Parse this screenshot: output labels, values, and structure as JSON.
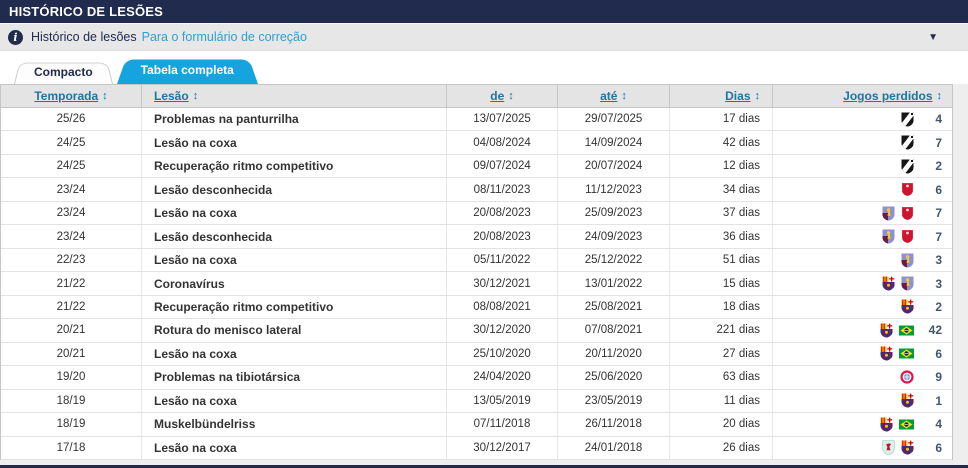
{
  "header": {
    "title": "HISTÓRICO DE LESÕES"
  },
  "info_bar": {
    "label": "Histórico de lesões",
    "link": "Para o formulário de correção",
    "caret": "▼"
  },
  "tabs": [
    {
      "label": "Compacto",
      "active": false
    },
    {
      "label": "Tabela completa",
      "active": true
    }
  ],
  "table": {
    "sort_glyph": "↕",
    "columns": [
      {
        "key": "temporada",
        "label": "Temporada"
      },
      {
        "key": "lesao",
        "label": "Lesão"
      },
      {
        "key": "de",
        "label": "de"
      },
      {
        "key": "ate",
        "label": "até"
      },
      {
        "key": "dias",
        "label": "Dias"
      },
      {
        "key": "jogos",
        "label": "Jogos perdidos"
      }
    ],
    "rows": [
      {
        "temporada": "25/26",
        "lesao": "Problemas na panturrilha",
        "de": "13/07/2025",
        "ate": "29/07/2025",
        "dias": "17 dias",
        "clubs": [
          "vasco-da-gama"
        ],
        "jogos": "4"
      },
      {
        "temporada": "24/25",
        "lesao": "Lesão na coxa",
        "de": "04/08/2024",
        "ate": "14/09/2024",
        "dias": "42 dias",
        "clubs": [
          "vasco-da-gama"
        ],
        "jogos": "7"
      },
      {
        "temporada": "24/25",
        "lesao": "Recuperação ritmo competitivo",
        "de": "09/07/2024",
        "ate": "20/07/2024",
        "dias": "12 dias",
        "clubs": [
          "vasco-da-gama"
        ],
        "jogos": "2"
      },
      {
        "temporada": "23/24",
        "lesao": "Lesão desconhecida",
        "de": "08/11/2023",
        "ate": "11/12/2023",
        "dias": "34 dias",
        "clubs": [
          "al-duhail"
        ],
        "jogos": "6"
      },
      {
        "temporada": "23/24",
        "lesao": "Lesão na coxa",
        "de": "20/08/2023",
        "ate": "25/09/2023",
        "dias": "37 dias",
        "clubs": [
          "aston-villa",
          "al-duhail"
        ],
        "jogos": "7"
      },
      {
        "temporada": "23/24",
        "lesao": "Lesão desconhecida",
        "de": "20/08/2023",
        "ate": "24/09/2023",
        "dias": "36 dias",
        "clubs": [
          "aston-villa",
          "al-duhail"
        ],
        "jogos": "7"
      },
      {
        "temporada": "22/23",
        "lesao": "Lesão na coxa",
        "de": "05/11/2022",
        "ate": "25/12/2022",
        "dias": "51 dias",
        "clubs": [
          "aston-villa"
        ],
        "jogos": "3"
      },
      {
        "temporada": "21/22",
        "lesao": "Coronavírus",
        "de": "30/12/2021",
        "ate": "13/01/2022",
        "dias": "15 dias",
        "clubs": [
          "barcelona",
          "aston-villa"
        ],
        "jogos": "3"
      },
      {
        "temporada": "21/22",
        "lesao": "Recuperação ritmo competitivo",
        "de": "08/08/2021",
        "ate": "25/08/2021",
        "dias": "18 dias",
        "clubs": [
          "barcelona"
        ],
        "jogos": "2"
      },
      {
        "temporada": "20/21",
        "lesao": "Rotura do menisco lateral",
        "de": "30/12/2020",
        "ate": "07/08/2021",
        "dias": "221 dias",
        "clubs": [
          "barcelona",
          "brazil"
        ],
        "jogos": "42"
      },
      {
        "temporada": "20/21",
        "lesao": "Lesão na coxa",
        "de": "25/10/2020",
        "ate": "20/11/2020",
        "dias": "27 dias",
        "clubs": [
          "barcelona",
          "brazil"
        ],
        "jogos": "6"
      },
      {
        "temporada": "19/20",
        "lesao": "Problemas na tibiotársica",
        "de": "24/04/2020",
        "ate": "25/06/2020",
        "dias": "63 dias",
        "clubs": [
          "bayern"
        ],
        "jogos": "9"
      },
      {
        "temporada": "18/19",
        "lesao": "Lesão na coxa",
        "de": "13/05/2019",
        "ate": "23/05/2019",
        "dias": "11 dias",
        "clubs": [
          "barcelona"
        ],
        "jogos": "1"
      },
      {
        "temporada": "18/19",
        "lesao": "Muskelbündelriss",
        "de": "07/11/2018",
        "ate": "26/11/2018",
        "dias": "20 dias",
        "clubs": [
          "barcelona",
          "brazil"
        ],
        "jogos": "4"
      },
      {
        "temporada": "17/18",
        "lesao": "Lesão na coxa",
        "de": "30/12/2017",
        "ate": "24/01/2018",
        "dias": "26 dias",
        "clubs": [
          "liverpool",
          "barcelona"
        ],
        "jogos": "6"
      }
    ]
  },
  "colors": {
    "navy": "#202b4e",
    "tab_active_blue": "#15a4dd",
    "column_link_blue": "#1d75a3",
    "info_link_blue": "#2e9fd4",
    "row_text": "#333333",
    "games_number": "#44566d",
    "page_bg": "#eeeeee"
  }
}
